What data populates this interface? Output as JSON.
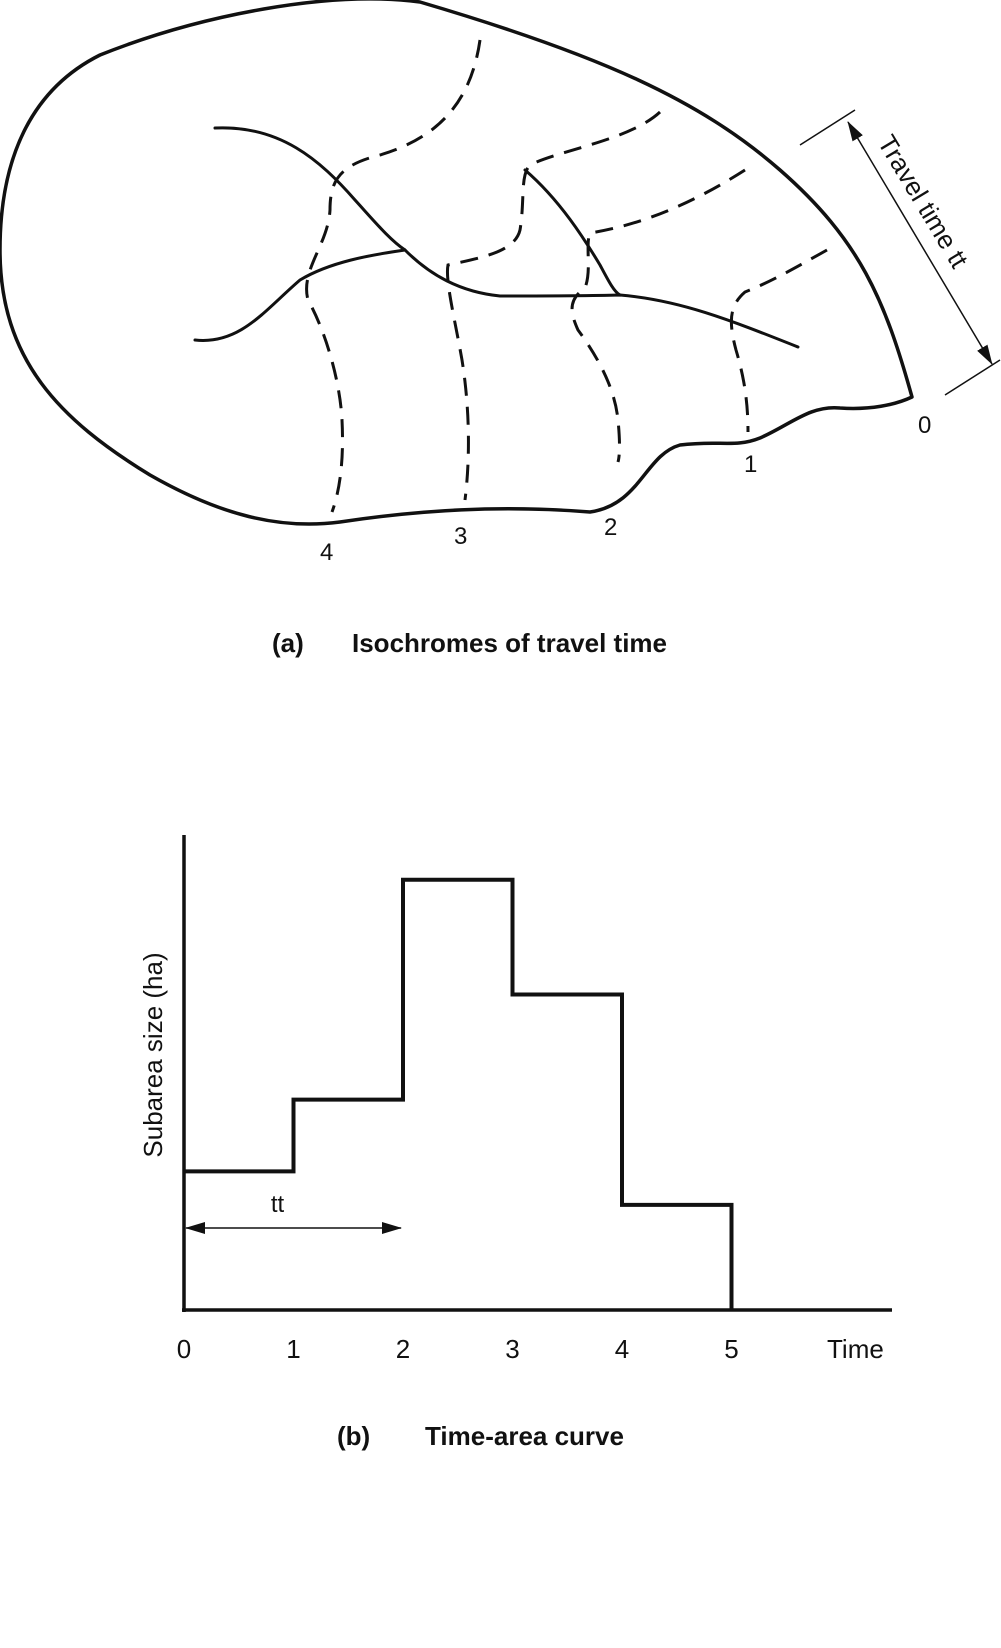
{
  "panel_a": {
    "caption_letter": "(a)",
    "caption_text": "Isochromes of travel time",
    "travel_time_label": "Travel time  tt",
    "isochrone_labels": [
      "0",
      "1",
      "2",
      "3",
      "4"
    ]
  },
  "panel_b": {
    "caption_letter": "(b)",
    "caption_text": "Time-area curve",
    "tt_label": "tt"
  },
  "chart_data": {
    "type": "step",
    "title": "",
    "xlabel": "Time",
    "ylabel": "Subarea size (ha)",
    "x_ticks": [
      "0",
      "1",
      "2",
      "3",
      "4",
      "5"
    ],
    "xlim": [
      0,
      6.5
    ],
    "ylim": [
      0,
      1
    ],
    "series": [
      {
        "intervals": [
          {
            "x0": 0,
            "x1": 1,
            "value": 0.29
          },
          {
            "x0": 1,
            "x1": 2,
            "value": 0.44
          },
          {
            "x0": 2,
            "x1": 3,
            "value": 0.9
          },
          {
            "x0": 3,
            "x1": 4,
            "value": 0.66
          },
          {
            "x0": 4,
            "x1": 5,
            "value": 0.22
          }
        ]
      }
    ],
    "annotation": {
      "text": "tt",
      "from_x": 0,
      "to_x": 2
    },
    "grid": false,
    "legend": "none"
  }
}
